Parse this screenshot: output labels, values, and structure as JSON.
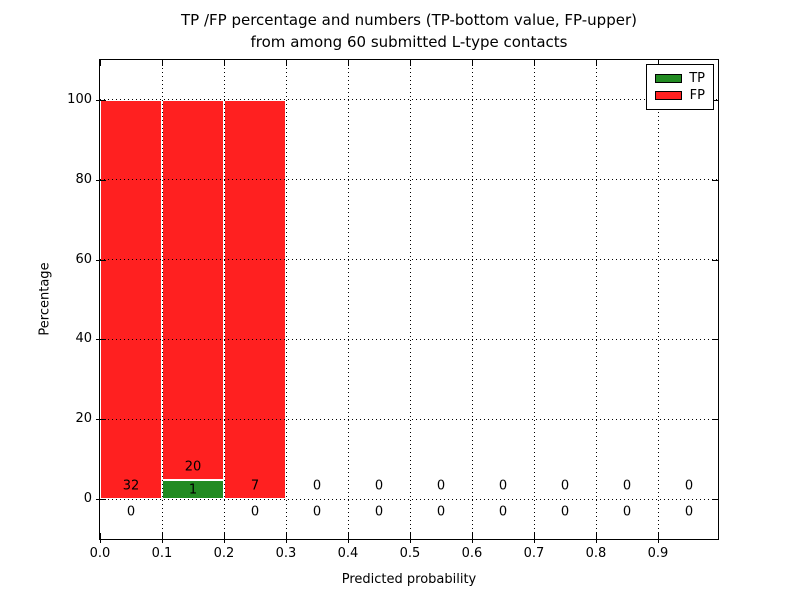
{
  "title": {
    "line1": "TP /FP percentage and numbers (TP-bottom value, FP-upper)",
    "line2": "from among 60 submitted L-type contacts"
  },
  "axes": {
    "xlabel": "Predicted probability",
    "ylabel": "Percentage",
    "x_tick_labels": [
      "0.0",
      "0.1",
      "0.2",
      "0.3",
      "0.4",
      "0.5",
      "0.6",
      "0.7",
      "0.8",
      "0.9"
    ],
    "y_tick_labels": [
      "0",
      "20",
      "40",
      "60",
      "80",
      "100"
    ],
    "y_tick_values": [
      0,
      20,
      40,
      60,
      80,
      100
    ],
    "ylim": [
      -10,
      110
    ],
    "xlim": [
      0,
      1
    ]
  },
  "legend": {
    "position": "upper right",
    "entries": [
      {
        "label": "TP",
        "color": "#228b22"
      },
      {
        "label": "FP",
        "color": "#ff2020"
      }
    ]
  },
  "chart_data": {
    "type": "bar",
    "stacked": true,
    "title": "TP /FP percentage and numbers (TP-bottom value, FP-upper) from among 60 submitted L-type contacts",
    "xlabel": "Predicted probability",
    "ylabel": "Percentage",
    "total_contacts": 60,
    "bin_edges": [
      0.0,
      0.1,
      0.2,
      0.3,
      0.4,
      0.5,
      0.6,
      0.7,
      0.8,
      0.9,
      1.0
    ],
    "bin_width": 0.1,
    "series": [
      {
        "name": "TP",
        "color": "#228b22",
        "counts": [
          0,
          1,
          0,
          0,
          0,
          0,
          0,
          0,
          0,
          0
        ],
        "percent": [
          0,
          4.76,
          0,
          0,
          0,
          0,
          0,
          0,
          0,
          0
        ]
      },
      {
        "name": "FP",
        "color": "#ff2020",
        "counts": [
          32,
          20,
          7,
          0,
          0,
          0,
          0,
          0,
          0,
          0
        ],
        "percent": [
          100,
          95.24,
          100,
          0,
          0,
          0,
          0,
          0,
          0,
          0
        ]
      }
    ],
    "grid": "dotted, on top of bars",
    "legend_position": "upper right",
    "ylim": [
      -10,
      110
    ]
  }
}
